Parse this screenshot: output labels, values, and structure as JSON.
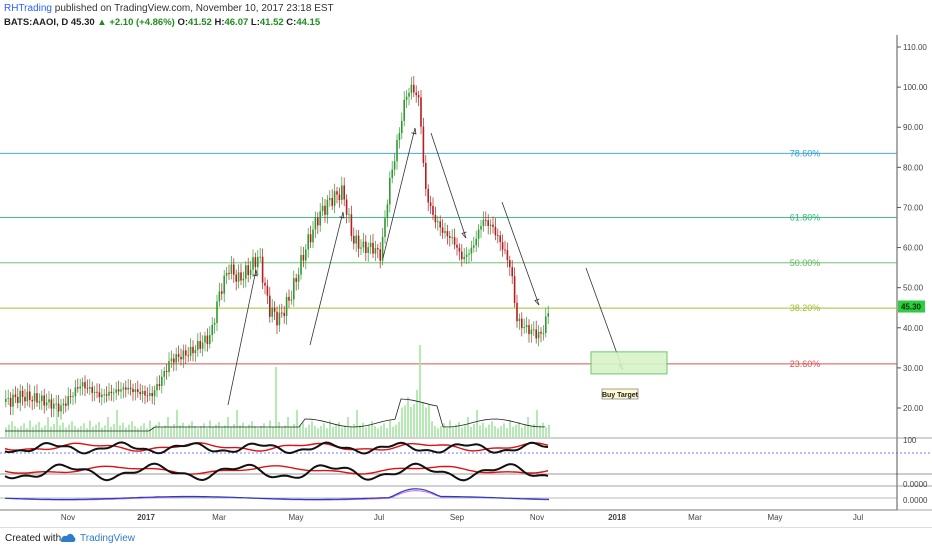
{
  "header": {
    "author": "RHTrading",
    "published": "published on TradingView.com, November 10, 2017 23:18 EST",
    "symbol": "BATS:AAOI, D",
    "price": "45.30",
    "change": "+2.10 (+4.86%)",
    "o_label": "O:",
    "o_value": "41.52",
    "h_label": "H:",
    "h_value": "46.07",
    "l_label": "L:",
    "l_value": "41.52",
    "c_label": "C:",
    "c_value": "44.15"
  },
  "footer": {
    "created_with": "Created with",
    "brand": "TradingView"
  },
  "chart_data": {
    "type": "candlestick",
    "y_axis": {
      "min": 15,
      "max": 112,
      "ticks": [
        "110.00",
        "100.00",
        "90.00",
        "80.00",
        "70.00",
        "60.00",
        "50.00",
        "40.00",
        "30.00",
        "20.00"
      ],
      "tick_values": [
        110,
        100,
        90,
        80,
        70,
        60,
        50,
        40,
        30,
        20
      ]
    },
    "x_axis": {
      "labels": [
        "Nov",
        "2017",
        "Mar",
        "May",
        "Jul",
        "Sep",
        "Nov",
        "2018",
        "Mar",
        "May",
        "Jul"
      ]
    },
    "last_price_label": "45.30",
    "fib_levels": [
      {
        "label": "78.60%",
        "value": 83.5,
        "color": "#2a9fd6"
      },
      {
        "label": "61.80%",
        "value": 67.5,
        "color": "#2bb673"
      },
      {
        "label": "50.00%",
        "value": 56.2,
        "color": "#5cb85c"
      },
      {
        "label": "38.20%",
        "value": 44.9,
        "color": "#a0c030"
      },
      {
        "label": "23.60%",
        "value": 31.0,
        "color": "#d9534f"
      }
    ],
    "target_box": {
      "label": "Buy Target",
      "low": 28.5,
      "high": 34.0
    },
    "price_keypoints": [
      [
        0,
        21
      ],
      [
        20,
        23
      ],
      [
        40,
        22
      ],
      [
        60,
        20
      ],
      [
        80,
        26
      ],
      [
        100,
        23
      ],
      [
        125,
        25
      ],
      [
        150,
        23
      ],
      [
        158,
        26
      ],
      [
        170,
        32
      ],
      [
        190,
        34
      ],
      [
        210,
        38
      ],
      [
        218,
        48
      ],
      [
        228,
        55
      ],
      [
        238,
        52
      ],
      [
        250,
        55
      ],
      [
        258,
        58
      ],
      [
        268,
        45
      ],
      [
        278,
        42
      ],
      [
        290,
        48
      ],
      [
        305,
        60
      ],
      [
        318,
        68
      ],
      [
        330,
        72
      ],
      [
        342,
        74
      ],
      [
        352,
        62
      ],
      [
        362,
        60
      ],
      [
        372,
        60
      ],
      [
        380,
        58
      ],
      [
        388,
        75
      ],
      [
        398,
        88
      ],
      [
        405,
        98
      ],
      [
        412,
        100
      ],
      [
        419,
        96
      ],
      [
        424,
        75
      ],
      [
        432,
        68
      ],
      [
        442,
        64
      ],
      [
        452,
        62
      ],
      [
        462,
        57
      ],
      [
        472,
        60
      ],
      [
        482,
        67
      ],
      [
        492,
        65
      ],
      [
        502,
        60
      ],
      [
        510,
        55
      ],
      [
        516,
        42
      ],
      [
        524,
        40
      ],
      [
        532,
        39
      ],
      [
        540,
        38
      ],
      [
        548,
        44
      ]
    ],
    "indicator_labels": [
      "100",
      "0.0000",
      "0.0000"
    ]
  }
}
